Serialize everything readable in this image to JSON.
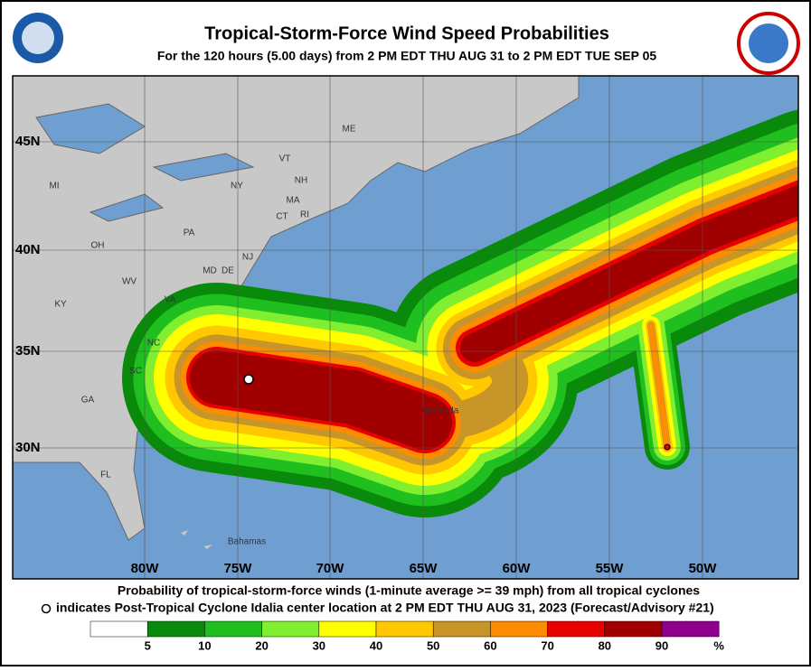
{
  "header": {
    "title": "Tropical-Storm-Force Wind Speed Probabilities",
    "subtitle": "For the 120 hours (5.00 days) from 2 PM EDT THU AUG 31 to 2 PM EDT TUE SEP 05"
  },
  "map": {
    "longitude_labels": [
      "80W",
      "75W",
      "70W",
      "65W",
      "60W",
      "55W",
      "50W"
    ],
    "latitude_labels": [
      "45N",
      "40N",
      "35N",
      "30N"
    ],
    "region_labels": [
      "ME",
      "VT",
      "NH",
      "NY",
      "MA",
      "CT",
      "RI",
      "PA",
      "NJ",
      "DE",
      "MD",
      "OH",
      "MI",
      "WV",
      "VA",
      "KY",
      "NC",
      "SC",
      "GA",
      "FL"
    ],
    "place_labels": [
      "Bermuda",
      "Bahamas"
    ]
  },
  "caption": {
    "line1": "Probability of tropical-storm-force winds (1-minute average >= 39 mph) from all tropical cyclones",
    "line2": "indicates Post-Tropical Cyclone Idalia center location at 2 PM EDT THU AUG 31, 2023 (Forecast/Advisory #21)"
  },
  "legend": {
    "labels": [
      "5",
      "10",
      "20",
      "30",
      "40",
      "50",
      "60",
      "70",
      "80",
      "90",
      "%"
    ],
    "colors": [
      "#ffffff",
      "#0a8a0a",
      "#1fbf1f",
      "#7fef2f",
      "#ffff00",
      "#ffc800",
      "#c89628",
      "#ff8c00",
      "#e60000",
      "#a00000",
      "#8c008c"
    ]
  }
}
